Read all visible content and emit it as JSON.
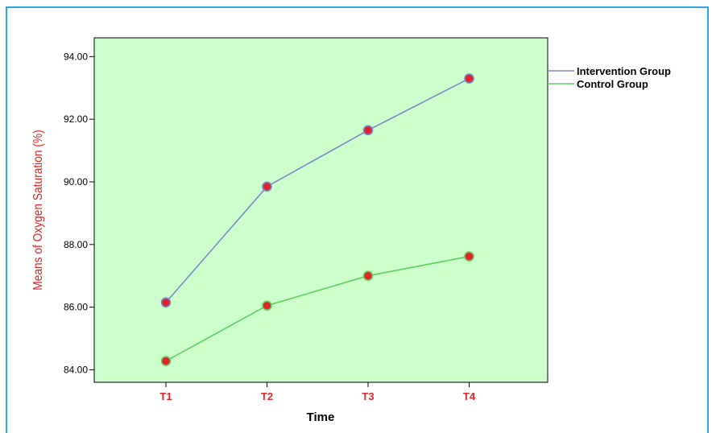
{
  "chart_data": {
    "type": "line",
    "categories": [
      "T1",
      "T2",
      "T3",
      "T4"
    ],
    "series": [
      {
        "name": "Intervention Group",
        "values": [
          86.15,
          89.85,
          91.65,
          93.3
        ],
        "color": "#7b86c5"
      },
      {
        "name": "Control Group",
        "values": [
          84.28,
          86.05,
          87.0,
          87.62
        ],
        "color": "#5fcf5f"
      }
    ],
    "xlabel": "Time",
    "ylabel": "Means of Oxygen Saturation (%)",
    "ylim": [
      83.6,
      94.6
    ],
    "yticks": [
      "84.00",
      "86.00",
      "88.00",
      "90.00",
      "92.00",
      "94.00"
    ],
    "plot_background": "#ccffcc",
    "marker_color": "#e0242b",
    "grid": false,
    "legend_position": "right-outside-top"
  }
}
